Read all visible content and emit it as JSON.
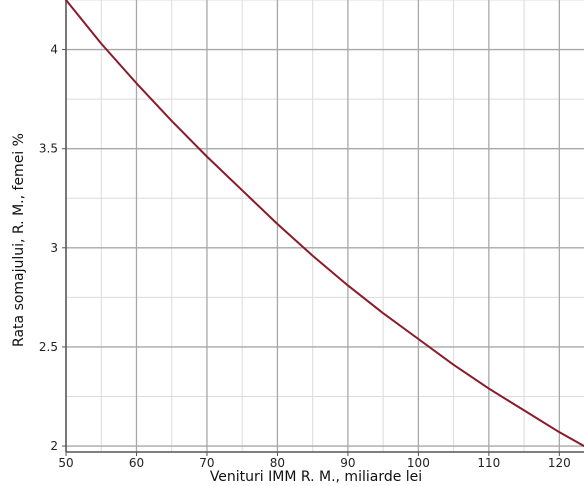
{
  "chart_data": {
    "type": "line",
    "title": "",
    "xlabel": "Venituri IMM R. M., miliarde lei",
    "ylabel": "Rata somajului, R. M., femei %",
    "xlim": [
      50,
      123.5
    ],
    "ylim": [
      1.97,
      4.25
    ],
    "x_ticks": [
      50,
      60,
      70,
      80,
      90,
      100,
      110,
      120
    ],
    "y_ticks": [
      2,
      2.5,
      3,
      3.5,
      4
    ],
    "x_tick_labels": [
      "50",
      "60",
      "70",
      "80",
      "90",
      "100",
      "110",
      "120"
    ],
    "y_tick_labels": [
      "2",
      "2.5",
      "3",
      "3.5",
      "4"
    ],
    "grid": true,
    "minor_grid": true,
    "series": [
      {
        "color": "#8b1a2a",
        "x": [
          50,
          55,
          60,
          65,
          70,
          75,
          80,
          85,
          90,
          95,
          100,
          105,
          110,
          115,
          120,
          123.5
        ],
        "y": [
          4.25,
          4.03,
          3.83,
          3.64,
          3.46,
          3.29,
          3.12,
          2.96,
          2.81,
          2.67,
          2.54,
          2.41,
          2.29,
          2.18,
          2.07,
          2.0
        ]
      }
    ],
    "colors": {
      "major_grid": "#a8a8a8",
      "minor_grid": "#dcdcdc",
      "axis": "#555555"
    }
  }
}
